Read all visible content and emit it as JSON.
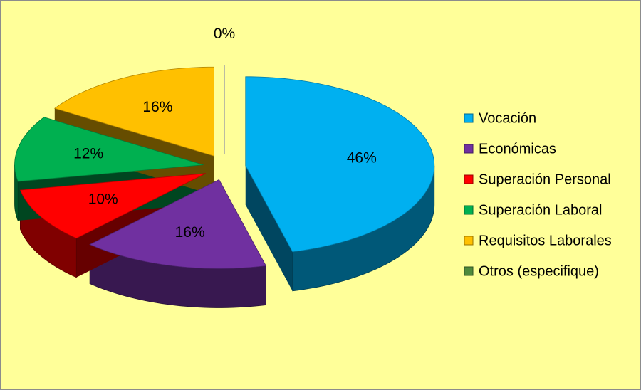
{
  "chart_data": {
    "type": "pie",
    "categories": [
      "Vocación",
      "Económicas",
      "Superación Personal",
      "Superación Laboral",
      "Requisitos Laborales",
      "Otros (especifique)"
    ],
    "values": [
      46,
      16,
      10,
      12,
      16,
      0
    ],
    "value_labels": [
      "46%",
      "16%",
      "10%",
      "12%",
      "16%",
      "0%"
    ],
    "colors": [
      "#00b0f0",
      "#7030a0",
      "#ff0000",
      "#00b050",
      "#ffc000",
      "#4f8a3c"
    ],
    "legend": "right"
  }
}
